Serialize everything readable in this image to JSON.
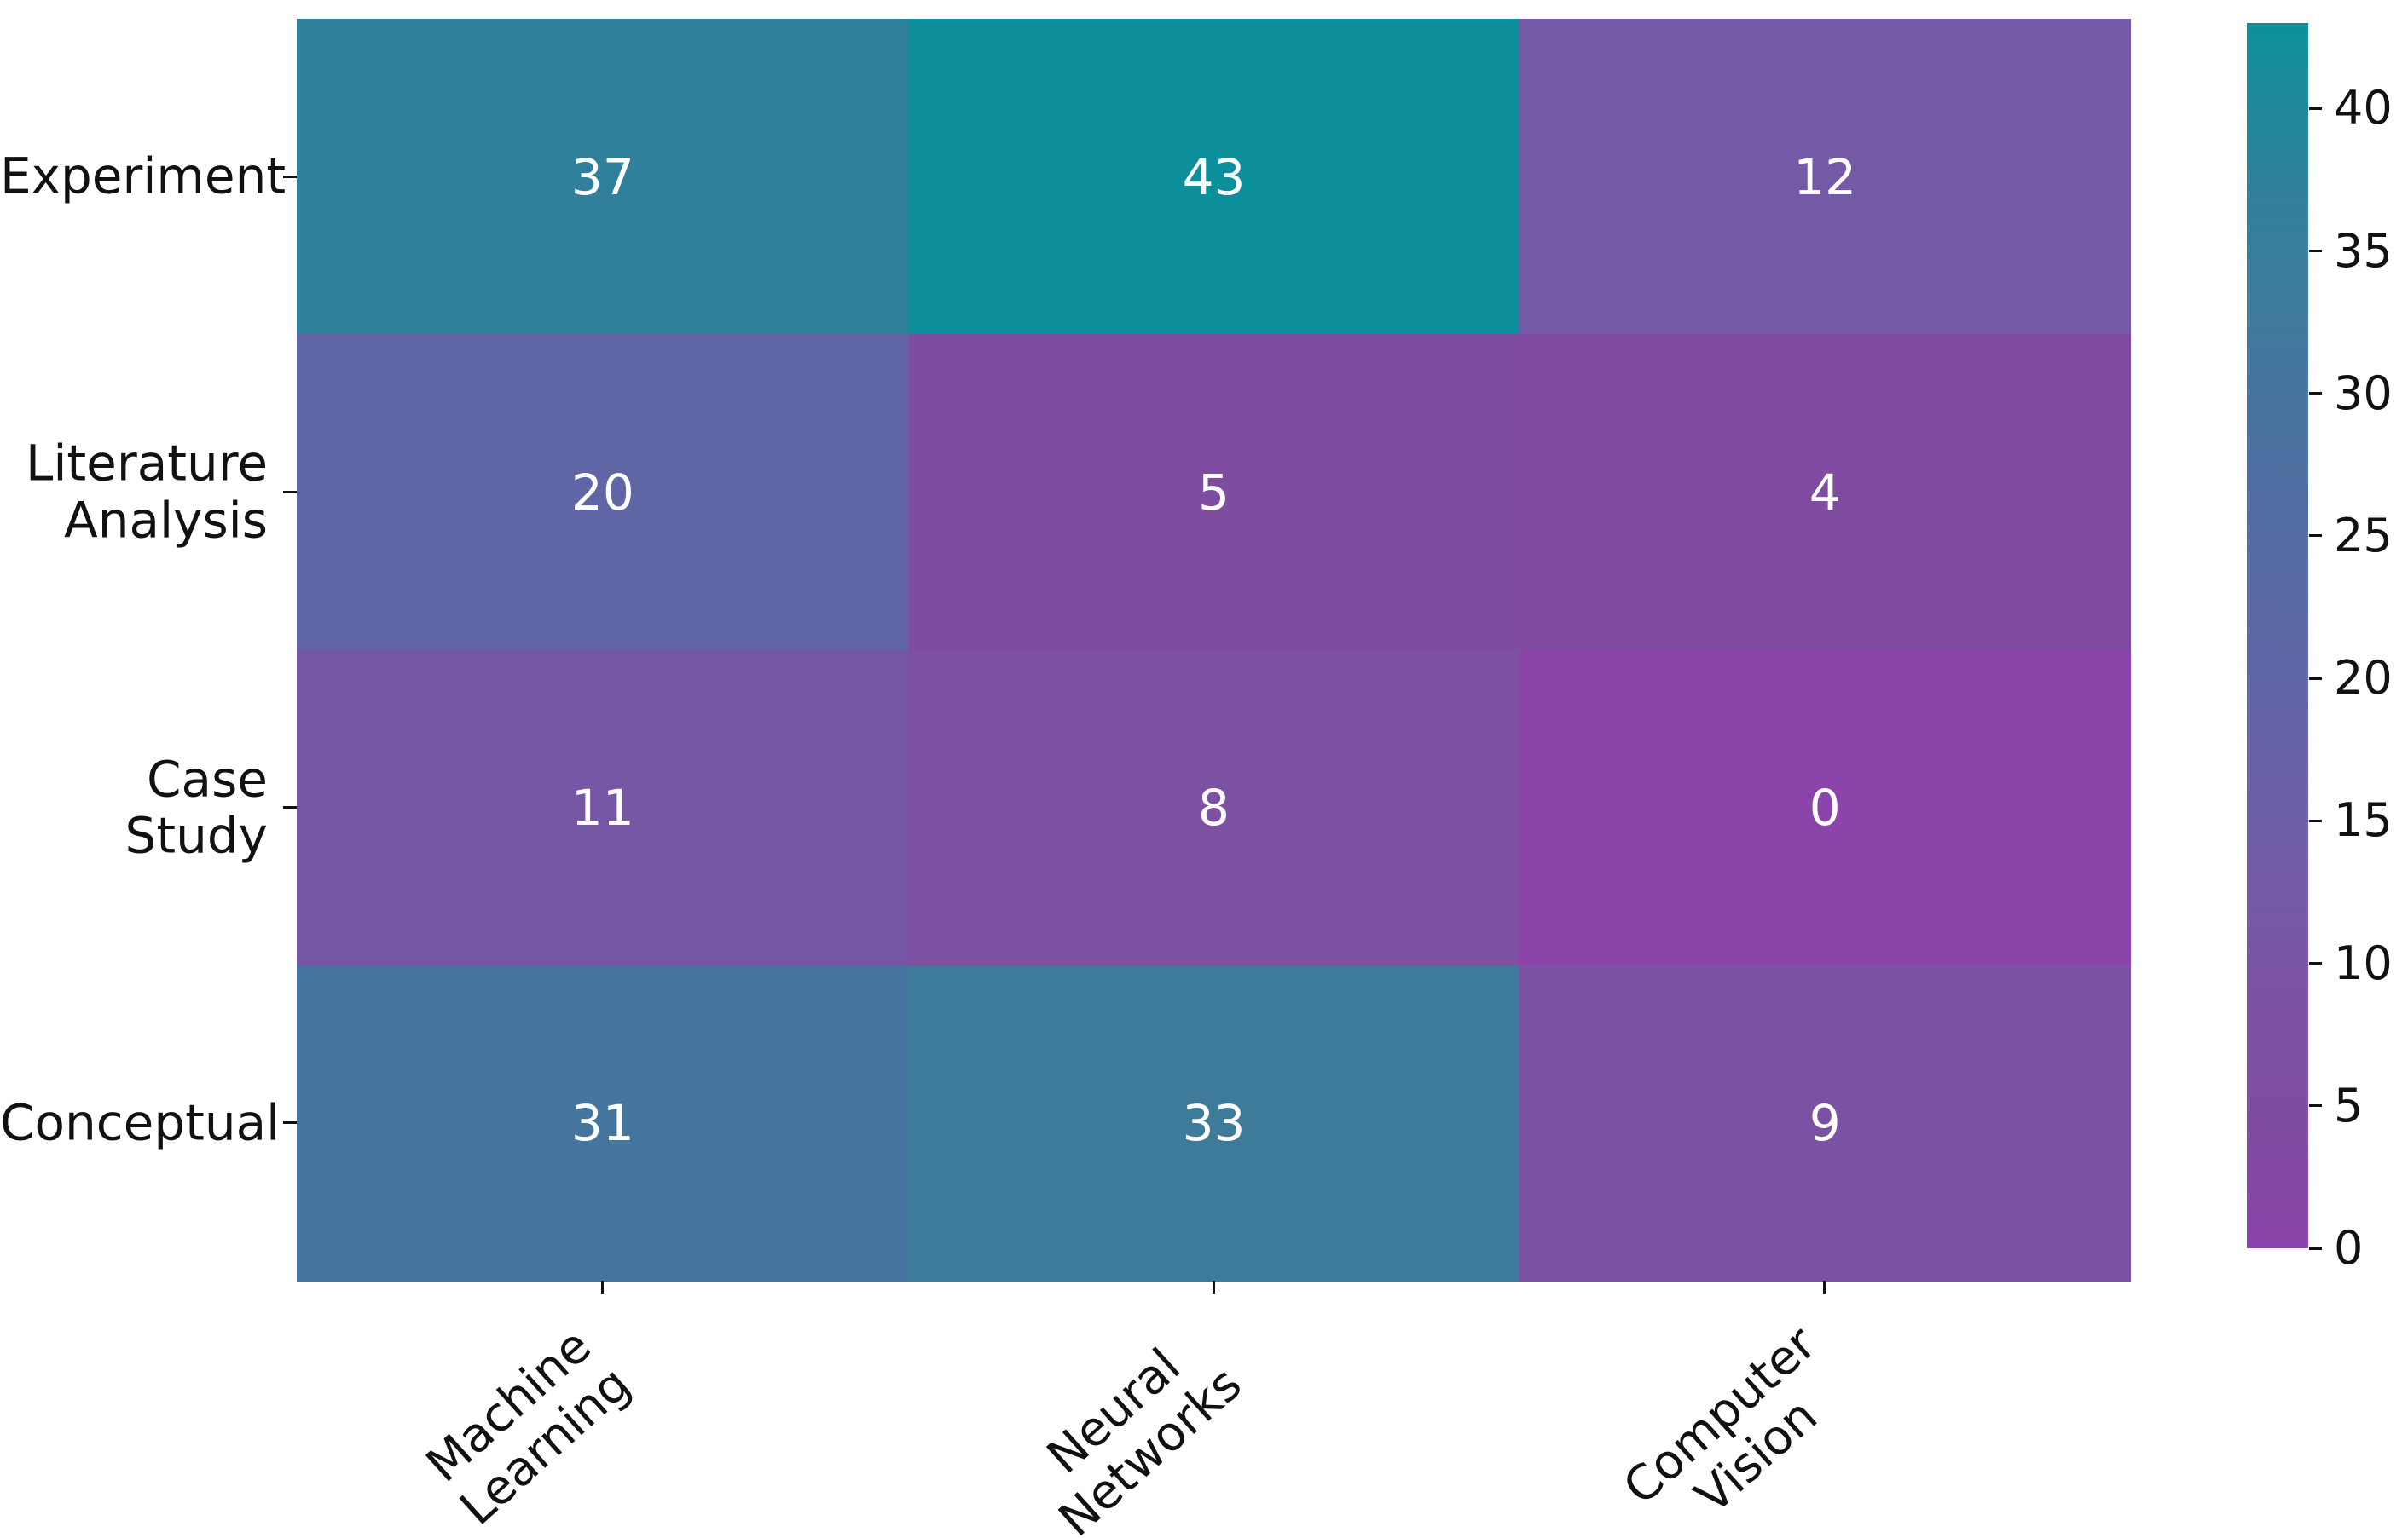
{
  "chart_data": {
    "type": "heatmap",
    "title": "",
    "rows": [
      "Experiment",
      "Literature\nAnalysis",
      "Case Study",
      "Conceptual"
    ],
    "columns": [
      "Machine\nLearning",
      "Neural\nNetworks",
      "Computer\nVision"
    ],
    "values": [
      [
        37,
        43,
        12
      ],
      [
        20,
        5,
        4
      ],
      [
        11,
        8,
        0
      ],
      [
        31,
        33,
        9
      ]
    ],
    "vmin": 0,
    "vmax": 43,
    "colorbar_ticks": [
      0,
      5,
      10,
      15,
      20,
      25,
      30,
      35,
      40
    ],
    "colormap_stops": [
      {
        "v": 0,
        "color": "#8b44a9"
      },
      {
        "v": 5,
        "color": "#7e4da0"
      },
      {
        "v": 9,
        "color": "#7b52a3"
      },
      {
        "v": 12,
        "color": "#7459a6"
      },
      {
        "v": 20,
        "color": "#6065a5"
      },
      {
        "v": 31,
        "color": "#44759f"
      },
      {
        "v": 33,
        "color": "#3e7b9b"
      },
      {
        "v": 37,
        "color": "#31809b"
      },
      {
        "v": 43,
        "color": "#0d8f9b"
      }
    ],
    "annotation_color": "#ffffff",
    "axis_text_color": "#111111",
    "legend_position": "right-colorbar",
    "grid": false
  }
}
